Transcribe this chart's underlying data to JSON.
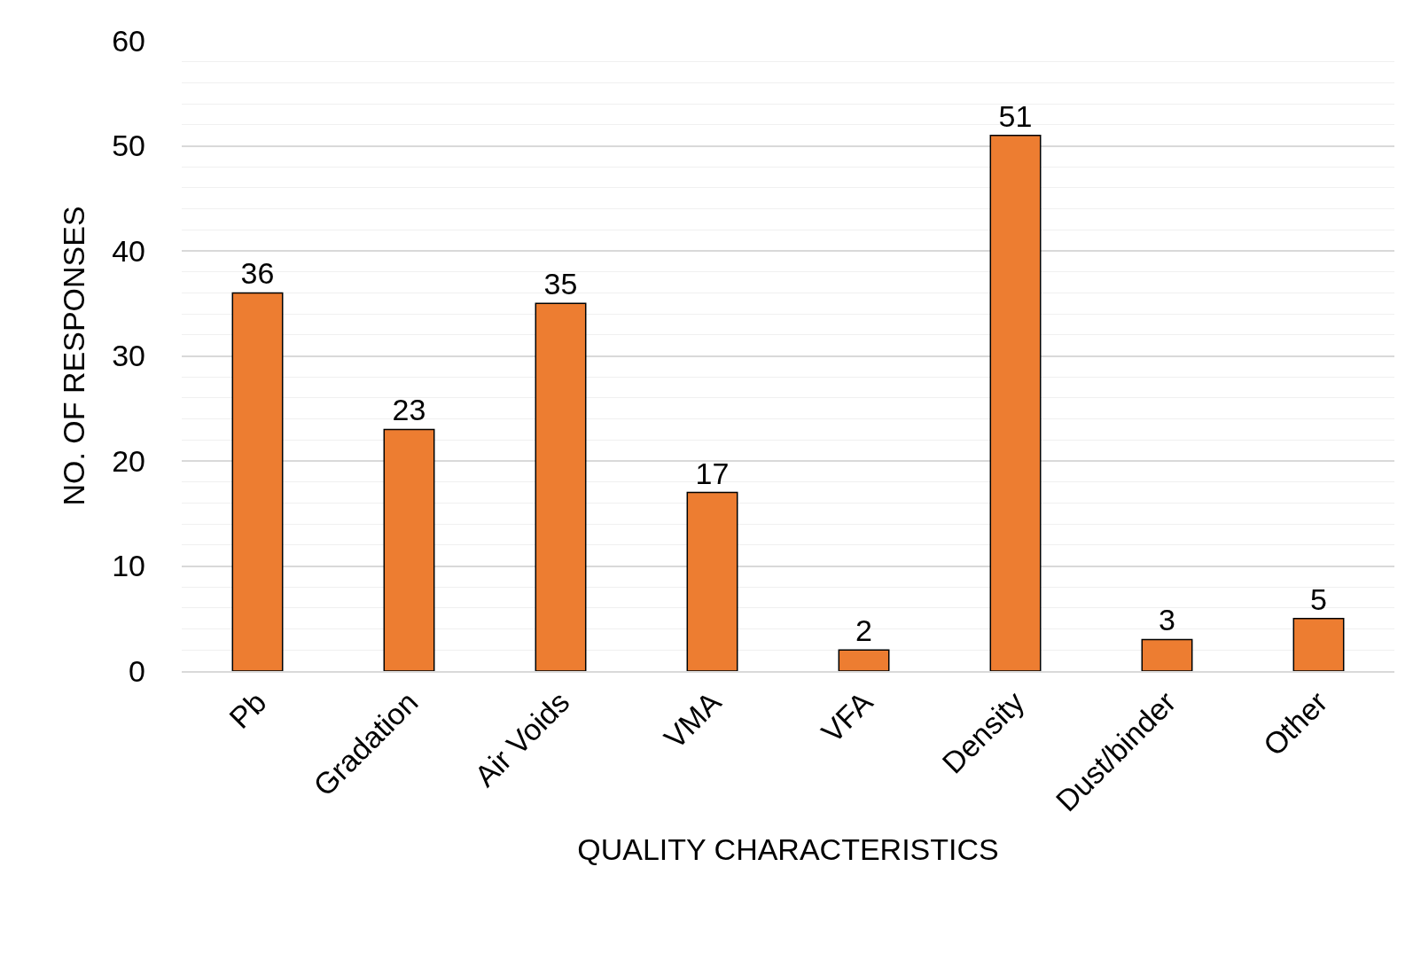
{
  "chart_data": {
    "type": "bar",
    "xlabel": "QUALITY CHARACTERISTICS",
    "ylabel": "NO. OF RESPONSES",
    "categories": [
      "Pb",
      "Gradation",
      "Air Voids",
      "VMA",
      "VFA",
      "Density",
      "Dust/binder",
      "Other"
    ],
    "values": [
      36,
      23,
      35,
      17,
      2,
      51,
      3,
      5
    ],
    "color": "#ed7d31",
    "ylim": [
      0,
      60
    ],
    "yticks": [
      0,
      10,
      20,
      30,
      40,
      50,
      60
    ],
    "grid": "y",
    "data_labels": true,
    "legend": false
  }
}
